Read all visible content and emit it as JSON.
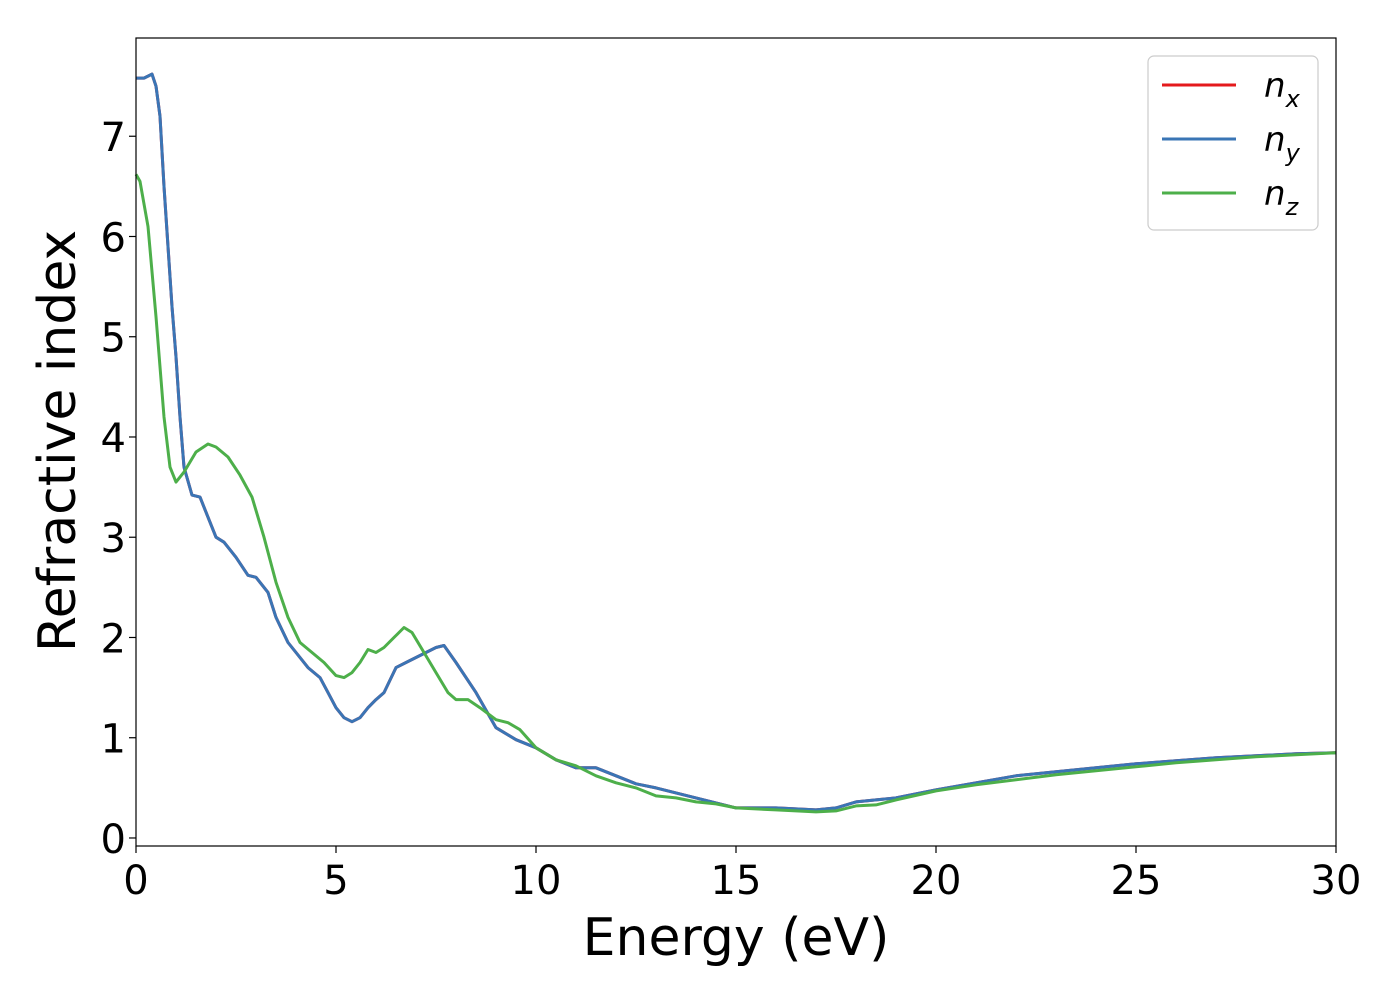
{
  "chart_data": {
    "type": "line",
    "title": "",
    "xlabel": "Energy (eV)",
    "ylabel": "Refractive index",
    "xlim": [
      0,
      30
    ],
    "ylim": [
      -0.08,
      7.98
    ],
    "xticks": [
      0,
      5,
      10,
      15,
      20,
      25,
      30
    ],
    "yticks": [
      0,
      1,
      2,
      3,
      4,
      5,
      6,
      7
    ],
    "grid": false,
    "legend": "top-right",
    "series": [
      {
        "name": "n",
        "subscript": "x",
        "color": "#e41a1c",
        "x": [
          0,
          0.2,
          0.4,
          0.5,
          0.6,
          0.7,
          0.8,
          0.9,
          1.0,
          1.1,
          1.2,
          1.4,
          1.6,
          1.8,
          2.0,
          2.2,
          2.5,
          2.8,
          3.0,
          3.3,
          3.5,
          3.8,
          4.0,
          4.3,
          4.6,
          4.8,
          5.0,
          5.2,
          5.4,
          5.6,
          5.8,
          6.0,
          6.2,
          6.5,
          6.8,
          7.0,
          7.3,
          7.5,
          7.7,
          8.0,
          8.5,
          9.0,
          9.5,
          10.0,
          10.5,
          11.0,
          11.5,
          12.0,
          12.5,
          13.0,
          13.5,
          14.0,
          14.5,
          15.0,
          16.0,
          17.0,
          17.5,
          18.0,
          18.5,
          19.0,
          20.0,
          21.0,
          22.0,
          23.0,
          24.0,
          25.0,
          26.0,
          27.0,
          28.0,
          29.0,
          30.0
        ],
        "y": [
          7.58,
          7.58,
          7.62,
          7.5,
          7.2,
          6.5,
          5.9,
          5.3,
          4.8,
          4.2,
          3.7,
          3.42,
          3.4,
          3.2,
          3.0,
          2.95,
          2.8,
          2.62,
          2.6,
          2.45,
          2.2,
          1.95,
          1.85,
          1.7,
          1.6,
          1.45,
          1.3,
          1.2,
          1.16,
          1.2,
          1.3,
          1.38,
          1.45,
          1.7,
          1.76,
          1.8,
          1.86,
          1.9,
          1.92,
          1.75,
          1.45,
          1.1,
          0.98,
          0.9,
          0.78,
          0.7,
          0.7,
          0.62,
          0.54,
          0.5,
          0.45,
          0.4,
          0.35,
          0.3,
          0.3,
          0.28,
          0.3,
          0.36,
          0.38,
          0.4,
          0.48,
          0.55,
          0.62,
          0.66,
          0.7,
          0.74,
          0.77,
          0.8,
          0.82,
          0.84,
          0.85
        ]
      },
      {
        "name": "n",
        "subscript": "y",
        "color": "#3a75b5",
        "x": [
          0,
          0.2,
          0.4,
          0.5,
          0.6,
          0.7,
          0.8,
          0.9,
          1.0,
          1.1,
          1.2,
          1.4,
          1.6,
          1.8,
          2.0,
          2.2,
          2.5,
          2.8,
          3.0,
          3.3,
          3.5,
          3.8,
          4.0,
          4.3,
          4.6,
          4.8,
          5.0,
          5.2,
          5.4,
          5.6,
          5.8,
          6.0,
          6.2,
          6.5,
          6.8,
          7.0,
          7.3,
          7.5,
          7.7,
          8.0,
          8.5,
          9.0,
          9.5,
          10.0,
          10.5,
          11.0,
          11.5,
          12.0,
          12.5,
          13.0,
          13.5,
          14.0,
          14.5,
          15.0,
          16.0,
          17.0,
          17.5,
          18.0,
          18.5,
          19.0,
          20.0,
          21.0,
          22.0,
          23.0,
          24.0,
          25.0,
          26.0,
          27.0,
          28.0,
          29.0,
          30.0
        ],
        "y": [
          7.58,
          7.58,
          7.62,
          7.5,
          7.2,
          6.5,
          5.9,
          5.3,
          4.8,
          4.2,
          3.7,
          3.42,
          3.4,
          3.2,
          3.0,
          2.95,
          2.8,
          2.62,
          2.6,
          2.45,
          2.2,
          1.95,
          1.85,
          1.7,
          1.6,
          1.45,
          1.3,
          1.2,
          1.16,
          1.2,
          1.3,
          1.38,
          1.45,
          1.7,
          1.76,
          1.8,
          1.86,
          1.9,
          1.92,
          1.75,
          1.45,
          1.1,
          0.98,
          0.9,
          0.78,
          0.7,
          0.7,
          0.62,
          0.54,
          0.5,
          0.45,
          0.4,
          0.35,
          0.3,
          0.3,
          0.28,
          0.3,
          0.36,
          0.38,
          0.4,
          0.48,
          0.55,
          0.62,
          0.66,
          0.7,
          0.74,
          0.77,
          0.8,
          0.82,
          0.84,
          0.85
        ]
      },
      {
        "name": "n",
        "subscript": "z",
        "color": "#4daf4a",
        "x": [
          0,
          0.1,
          0.3,
          0.5,
          0.7,
          0.85,
          1.0,
          1.2,
          1.5,
          1.8,
          2.0,
          2.3,
          2.6,
          2.9,
          3.2,
          3.5,
          3.8,
          4.1,
          4.4,
          4.7,
          5.0,
          5.2,
          5.4,
          5.6,
          5.8,
          6.0,
          6.2,
          6.5,
          6.7,
          6.9,
          7.2,
          7.5,
          7.8,
          8.0,
          8.3,
          8.6,
          9.0,
          9.3,
          9.6,
          10.0,
          10.5,
          11.0,
          11.5,
          12.0,
          12.5,
          13.0,
          13.5,
          14.0,
          14.5,
          15.0,
          16.0,
          17.0,
          17.5,
          18.0,
          18.5,
          19.0,
          20.0,
          21.0,
          22.0,
          23.0,
          24.0,
          25.0,
          26.0,
          27.0,
          28.0,
          29.0,
          30.0
        ],
        "y": [
          6.62,
          6.55,
          6.1,
          5.2,
          4.2,
          3.7,
          3.55,
          3.65,
          3.85,
          3.93,
          3.9,
          3.8,
          3.62,
          3.4,
          3.0,
          2.55,
          2.2,
          1.95,
          1.85,
          1.75,
          1.62,
          1.6,
          1.65,
          1.75,
          1.88,
          1.85,
          1.9,
          2.02,
          2.1,
          2.05,
          1.85,
          1.65,
          1.45,
          1.38,
          1.38,
          1.3,
          1.18,
          1.15,
          1.08,
          0.9,
          0.78,
          0.72,
          0.62,
          0.55,
          0.5,
          0.42,
          0.4,
          0.36,
          0.34,
          0.3,
          0.28,
          0.26,
          0.27,
          0.32,
          0.33,
          0.38,
          0.47,
          0.53,
          0.58,
          0.63,
          0.67,
          0.71,
          0.75,
          0.78,
          0.81,
          0.83,
          0.85
        ]
      }
    ]
  }
}
